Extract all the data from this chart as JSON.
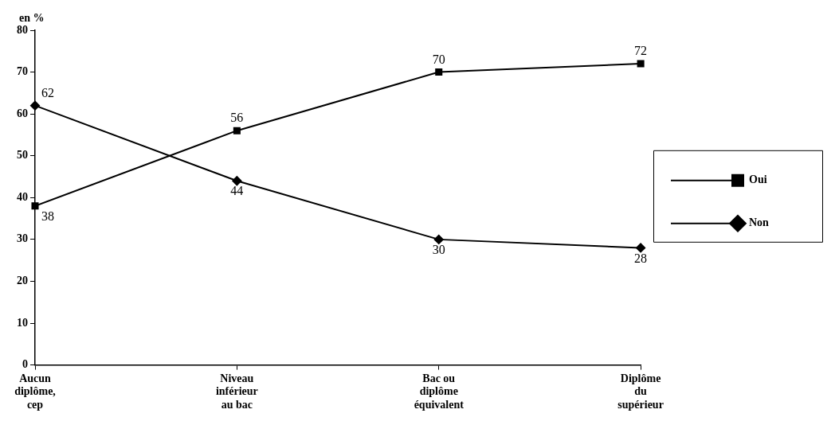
{
  "chart_data": {
    "type": "line",
    "ylabel": "en %",
    "categories": [
      "Aucun diplôme, cep",
      "Niveau inférieur au bac",
      "Bac ou diplôme équivalent",
      "Diplôme du supérieur"
    ],
    "series": [
      {
        "name": "Oui",
        "color": "#000000",
        "marker": "square",
        "values": [
          38,
          56,
          70,
          72
        ]
      },
      {
        "name": "Non",
        "color": "#000000",
        "marker": "diamond",
        "values": [
          62,
          44,
          30,
          28
        ]
      }
    ],
    "ylim": [
      0,
      80
    ],
    "yticks": [
      0,
      10,
      20,
      30,
      40,
      50,
      60,
      70,
      80
    ],
    "grid": false,
    "legend": "right",
    "data_labels": true,
    "line_style": "solid"
  }
}
